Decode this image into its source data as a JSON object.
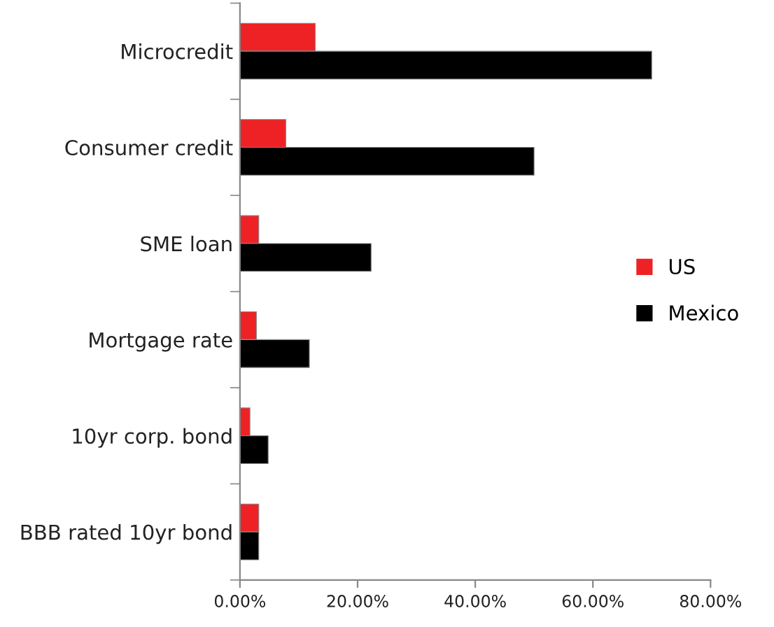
{
  "chart_data": {
    "type": "bar",
    "orientation": "horizontal",
    "categories": [
      "Microcredit",
      "Consumer credit",
      "SME loan",
      "Mortgage rate",
      "10yr corp. bond",
      "BBB rated 10yr bond"
    ],
    "series": [
      {
        "name": "US",
        "color": "#ee2224",
        "values": [
          12.8,
          7.8,
          3.2,
          2.8,
          1.7,
          3.2
        ]
      },
      {
        "name": "Mexico",
        "color": "#000000",
        "values": [
          70.0,
          50.0,
          22.3,
          11.8,
          4.8,
          3.2
        ]
      }
    ],
    "xlim": [
      0,
      80
    ],
    "xticks": [
      {
        "value": 0,
        "label": "0.00%"
      },
      {
        "value": 20,
        "label": "20.00%"
      },
      {
        "value": 40,
        "label": "40.00%"
      },
      {
        "value": 60,
        "label": "60.00%"
      },
      {
        "value": 80,
        "label": "80.00%"
      }
    ],
    "grid": false,
    "legend": "right"
  }
}
